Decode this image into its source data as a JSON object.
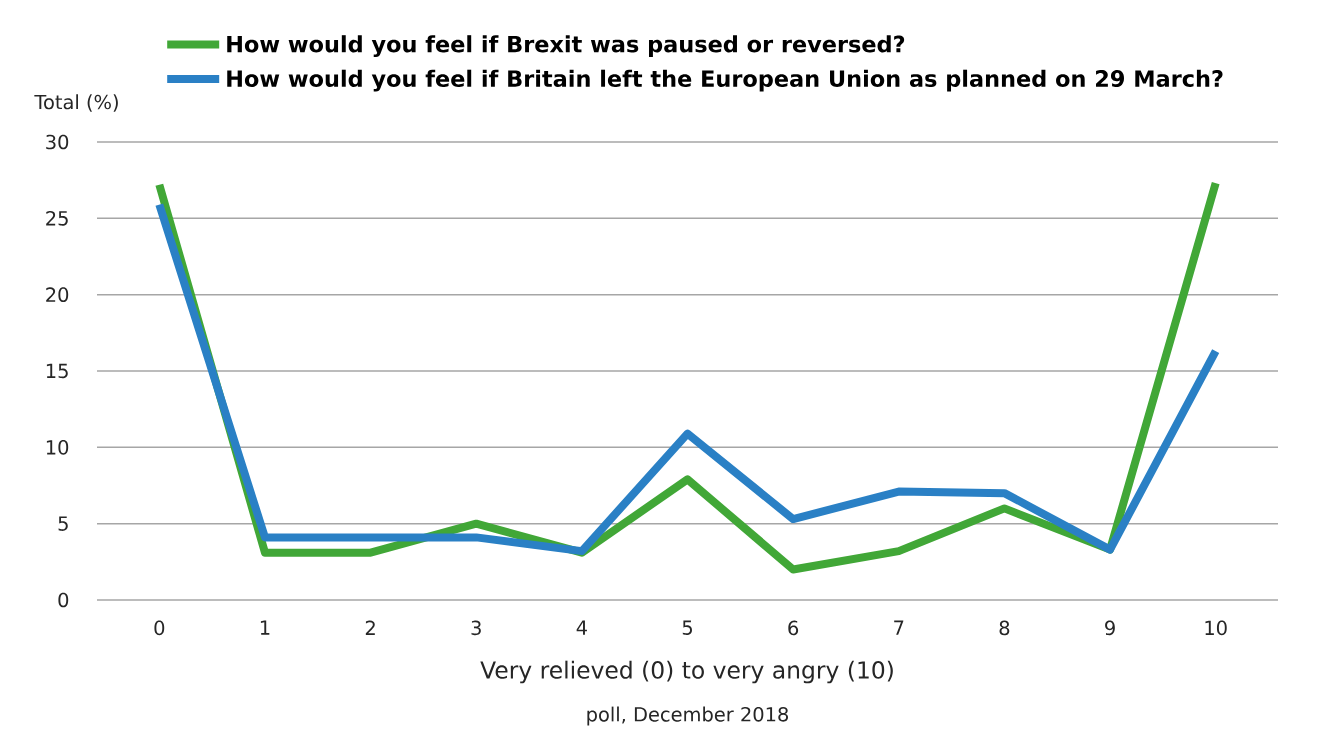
{
  "chart_data": {
    "type": "line",
    "xlabel": "Very relieved (0) to very angry (10)",
    "ylabel": "Total (%)",
    "annotations": [
      "poll, December 2018"
    ],
    "categories": [
      "0",
      "1",
      "2",
      "3",
      "4",
      "5",
      "6",
      "7",
      "8",
      "9",
      "10"
    ],
    "series": [
      {
        "name": "How would you feel if Brexit was paused or reversed?",
        "color": "#41a737",
        "values": [
          27.2,
          3.1,
          3.1,
          5.0,
          3.1,
          7.9,
          2.0,
          3.2,
          6.0,
          3.3,
          27.3
        ]
      },
      {
        "name": "How would you feel if Britain left the European Union as planned on 29 March?",
        "color": "#2a80c5",
        "values": [
          25.9,
          4.1,
          4.1,
          4.1,
          3.2,
          10.9,
          5.3,
          7.1,
          7.0,
          3.3,
          16.3
        ]
      }
    ],
    "ylim": [
      0,
      30
    ],
    "yticks": [
      0,
      5,
      10,
      15,
      20,
      25,
      30
    ],
    "grid": "y",
    "legend": "top",
    "marker": "none",
    "line_style": "solid"
  }
}
